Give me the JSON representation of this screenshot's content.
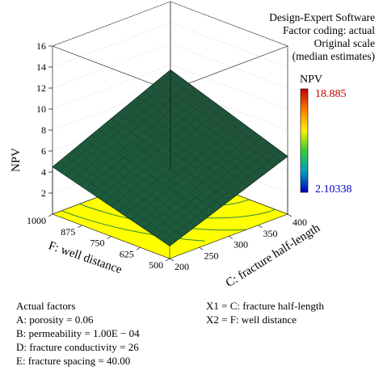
{
  "software": {
    "title": "Design-Expert Software",
    "coding": "Factor coding: actual",
    "scale": "Original scale",
    "estimates": "(median estimates)"
  },
  "colorbar": {
    "label": "NPV",
    "max_label": "18.885",
    "min_label": "2.10338",
    "max_color": "#c00000",
    "min_color": "#0000c0"
  },
  "chart_data": {
    "type": "surface3d",
    "zlabel": "NPV",
    "xlabel": "C: fracture half-length",
    "ylabel": "F: well distance",
    "x_ticks": [
      "200",
      "250",
      "300",
      "350",
      "400"
    ],
    "y_ticks": [
      "500",
      "625",
      "750",
      "875",
      "1000"
    ],
    "z_ticks": [
      "2",
      "4",
      "6",
      "8",
      "10",
      "12",
      "14",
      "16"
    ],
    "xlim": [
      200,
      400
    ],
    "ylim": [
      500,
      1000
    ],
    "zlim": [
      0,
      16
    ],
    "surface_corners": [
      {
        "x": 200,
        "y": 1000,
        "z": 4.5
      },
      {
        "x": 400,
        "y": 1000,
        "z": 9.5
      },
      {
        "x": 400,
        "y": 500,
        "z": 5.5
      },
      {
        "x": 200,
        "y": 500,
        "z": 1.2
      }
    ],
    "surface_color": "#1f5a3a",
    "floor_color": "#ffff00",
    "contour_color": "#2a8a3a"
  },
  "actual_factors": {
    "heading": "Actual factors",
    "a": "A: porosity = 0.06",
    "b": "B: permeability = 1.00E − 04",
    "d": "D: fracture conductivity = 26",
    "e": "E: fracture spacing = 40.00"
  },
  "coding_map": {
    "x1": "X1 = C: fracture half-length",
    "x2": "X2 = F: well distance"
  }
}
